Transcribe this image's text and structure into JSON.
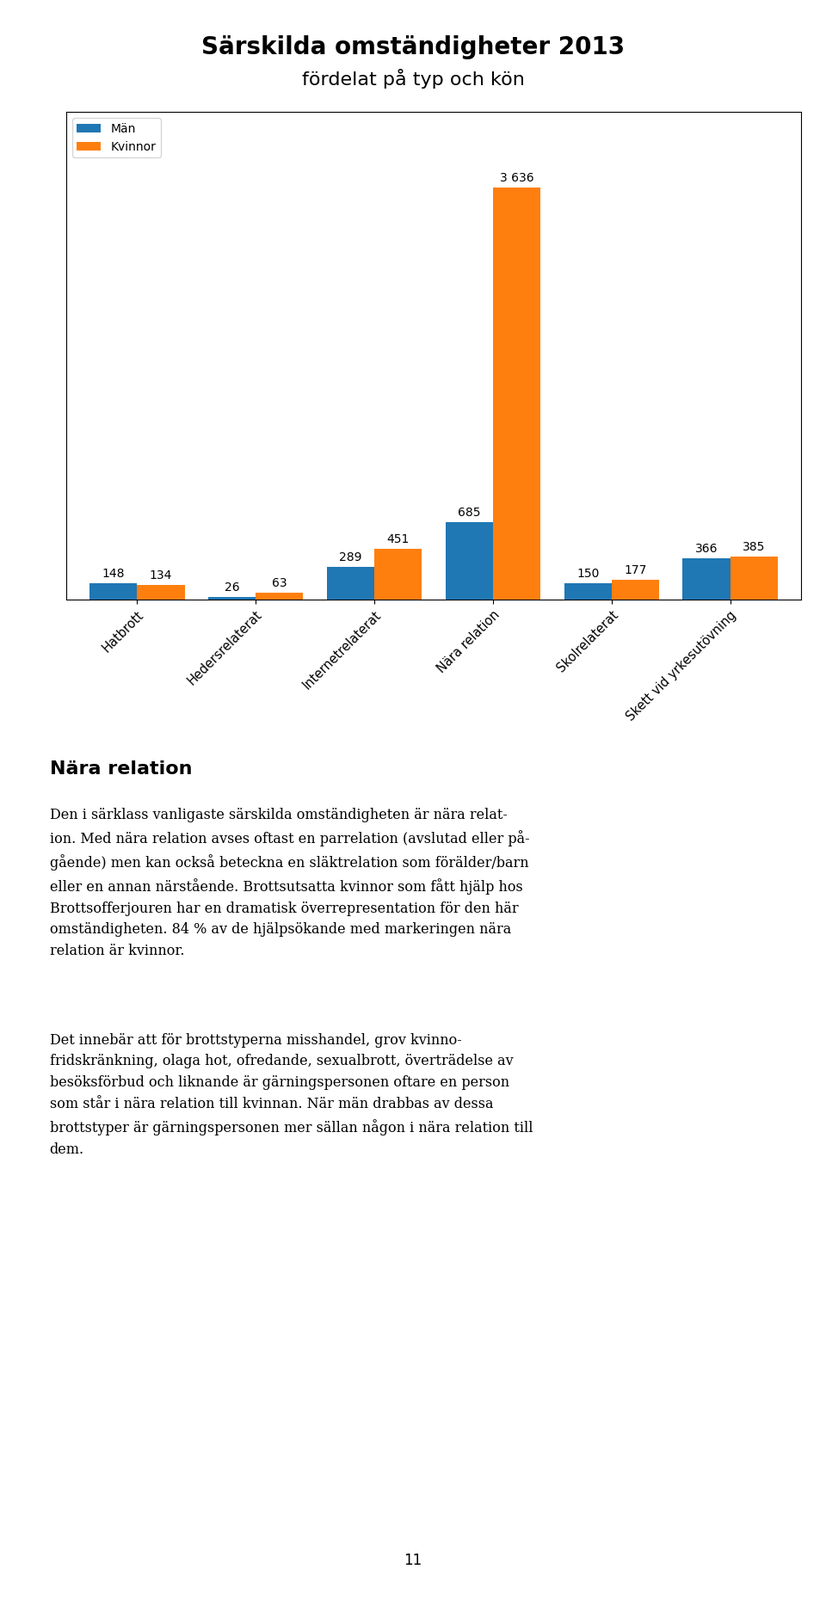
{
  "chart_data": {
    "type": "bar",
    "title": "Särskilda omständigheter 2013",
    "subtitle": "fördelat på typ och kön",
    "categories": [
      "Hatbrott",
      "Hedersrelaterat",
      "Internetrelaterat",
      "Nära relation",
      "Skolrelaterat",
      "Skett vid yrkesutövning"
    ],
    "series": [
      {
        "name": "Män",
        "values": [
          148,
          26,
          289,
          685,
          150,
          366
        ]
      },
      {
        "name": "Kvinnor",
        "values": [
          134,
          63,
          451,
          3636,
          177,
          385
        ],
        "value_labels": [
          "134",
          "63",
          "451",
          "3 636",
          "177",
          "385"
        ]
      }
    ],
    "ylim": [
      0,
      4300
    ],
    "yticks": [],
    "tick_labels": "x",
    "data_labels": true,
    "legend": "upper left",
    "annotations": [
      "Nära relation",
      "Den i särklass vanligaste särskilda omständigheten är nära relat-\nion. Med nära relation avses oftast en parrelation (avslutad eller på-\ngående) men kan också beteckna en släktrelation som förälder/barn\neller en annan närstående. Brottsutsatta kvinnor som fått hjälp hos\nBrottsofferjouren har en dramatisk överrepresentation för den här\nomständigheten. 84 % av de hjälpsökande med markeringen nära\nrelation är kvinnor.",
      "Det innebär att för brottstyperna misshandel, grov kvinno-\nfridskränkning, olaga hot, ofredande, sexualbrott, överträdelse av\nbesöksförbud och liknande är gärningspersonen oftare en person\nsom står i nära relation till kvinnan. När män drabbas av dessa\nbrottstyper är gärningspersonen mer sällan någon i nära relation till\ndem.",
      "11"
    ]
  }
}
